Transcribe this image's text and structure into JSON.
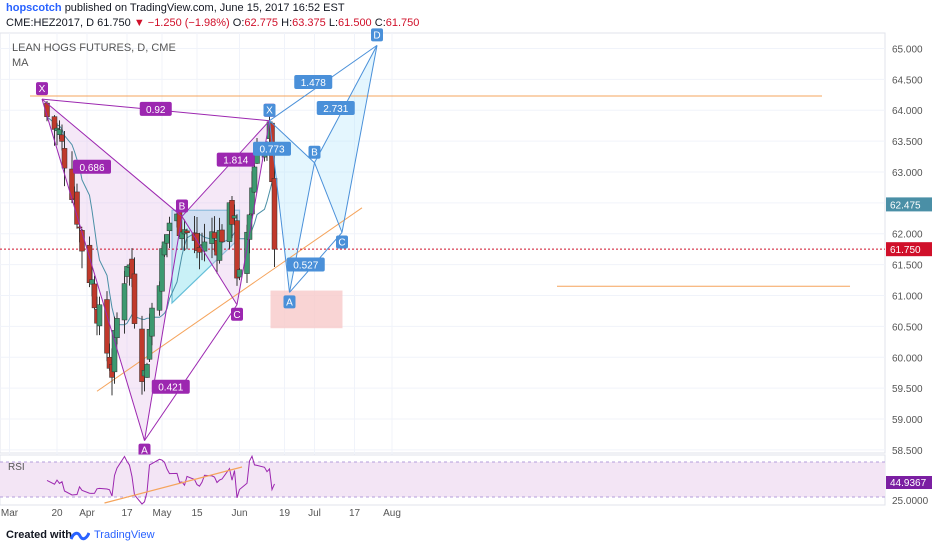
{
  "header": {
    "user": "hopscotch",
    "published": "published on TradingView.com, June 15, 2017 16:52 EST",
    "symbol": "CME:HEZ2017, D",
    "last": "61.750",
    "change": "−1.250 (−1.98%)",
    "open_label": "O:",
    "open": "62.775",
    "high_label": "H:",
    "high": "63.375",
    "low_label": "L:",
    "low": "61.500",
    "close_label": "C:",
    "close": "61.750"
  },
  "footer": {
    "created_with": "Created with",
    "brand": "TradingView"
  },
  "colors": {
    "up": "#3d9970",
    "down": "#c0392b",
    "pattern1": "#9c27b0",
    "pattern2": "#4a90d9",
    "orange": "#f5a45c",
    "ma": "#4a8fa6",
    "rsi": "#9c27b0",
    "price_line": "#d0102a"
  },
  "chart_data": [
    {
      "type": "candlestick",
      "title": "LEAN HOGS FUTURES, D, CME",
      "indicator_label": "MA",
      "y_axis": {
        "ticks": [
          "65.000",
          "64.500",
          "64.000",
          "63.500",
          "63.000",
          "62.500",
          "62.000",
          "61.500",
          "61.000",
          "60.500",
          "60.000",
          "59.500",
          "59.000",
          "58.500"
        ],
        "range": [
          58.45,
          65.25
        ]
      },
      "x_axis": {
        "ticks": [
          "Mar",
          "20",
          "Apr",
          "17",
          "May",
          "15",
          "Jun",
          "19",
          "Jul",
          "17",
          "Aug"
        ]
      },
      "price_labels": {
        "current": "61.750",
        "ma": "62.475",
        "ma_value": 62.475,
        "current_value": 61.75
      },
      "pattern_xabcd_1": {
        "points": [
          {
            "label": "X",
            "x": "Mar 14",
            "y": 64.18
          },
          {
            "label": "A",
            "x": "Apr 24",
            "y": 58.65
          },
          {
            "label": "B",
            "x": "May 9",
            "y": 62.28
          },
          {
            "label": "C",
            "x": "May 31",
            "y": 60.85
          },
          {
            "label": "X",
            "x": "Jun 13",
            "y": 63.83
          }
        ],
        "ratios": [
          "0.686",
          "0.92",
          "1.814",
          "0.421"
        ]
      },
      "pattern_xabcd_2": {
        "points": [
          {
            "label": "X",
            "x": "Jun 13",
            "y": 63.83
          },
          {
            "label": "A",
            "x": "Jun 21",
            "y": 61.05
          },
          {
            "label": "B",
            "x": "Jul 1",
            "y": 63.15
          },
          {
            "label": "C",
            "x": "Jul 12",
            "y": 62.02
          },
          {
            "label": "D",
            "x": "Jul 26",
            "y": 65.05
          }
        ],
        "ratios": [
          "0.773",
          "1.478",
          "2.731",
          "0.527"
        ]
      },
      "levels": {
        "resistance": 64.23,
        "support": 61.15
      },
      "target_zone": {
        "y_top": 61.08,
        "y_bottom": 60.47
      }
    },
    {
      "type": "line",
      "title": "RSI",
      "value_label": "44.9367",
      "value": 44.9367,
      "y_ticks": [
        "25.0000"
      ],
      "upper_band": "70",
      "lower_band": "30"
    }
  ]
}
